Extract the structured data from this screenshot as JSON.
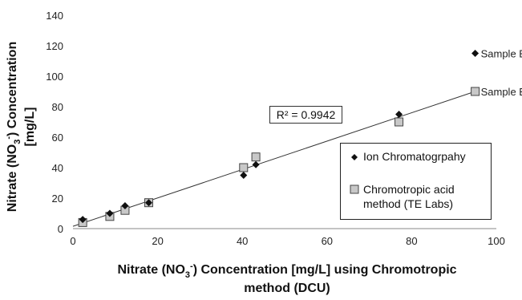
{
  "chart_data": {
    "type": "scatter",
    "xlabel": "Nitrate (NO3-) Concentration [mg/L] using Chromotropic method (DCU)",
    "ylabel": "Nitrate (NO3-) Concentration [mg/L]",
    "xlim": [
      0,
      100
    ],
    "ylim": [
      0,
      140
    ],
    "x_ticks": [
      0,
      20,
      40,
      60,
      80,
      100
    ],
    "y_ticks": [
      0,
      20,
      40,
      60,
      80,
      100,
      120,
      140
    ],
    "grid": false,
    "legend_position": "right",
    "series": [
      {
        "name": "Ion Chromatogrpahy",
        "marker": "diamond",
        "color": "#111111",
        "points": [
          {
            "x": 2.3,
            "y": 6
          },
          {
            "x": 8.7,
            "y": 10
          },
          {
            "x": 12.3,
            "y": 15
          },
          {
            "x": 17.9,
            "y": 17
          },
          {
            "x": 40.3,
            "y": 35
          },
          {
            "x": 43.2,
            "y": 42
          },
          {
            "x": 77,
            "y": 75
          },
          {
            "x": 95,
            "y": 115,
            "label": "Sample E"
          }
        ]
      },
      {
        "name": "Chromotropic acid method (TE Labs)",
        "marker": "square",
        "color": "#c8c8c8",
        "points": [
          {
            "x": 2.3,
            "y": 4
          },
          {
            "x": 8.7,
            "y": 8
          },
          {
            "x": 12.3,
            "y": 12
          },
          {
            "x": 17.9,
            "y": 17
          },
          {
            "x": 40.3,
            "y": 40
          },
          {
            "x": 43.2,
            "y": 47
          },
          {
            "x": 77,
            "y": 70
          },
          {
            "x": 95,
            "y": 90,
            "label": "Sample E"
          }
        ]
      }
    ],
    "trendline": {
      "x": [
        0,
        95
      ],
      "y": [
        1.5,
        90
      ],
      "annotation": "R² = 0.9942"
    }
  },
  "legend": {
    "items": [
      "Ion Chromatogrpahy",
      "Chromotropic acid method (TE Labs)"
    ]
  }
}
